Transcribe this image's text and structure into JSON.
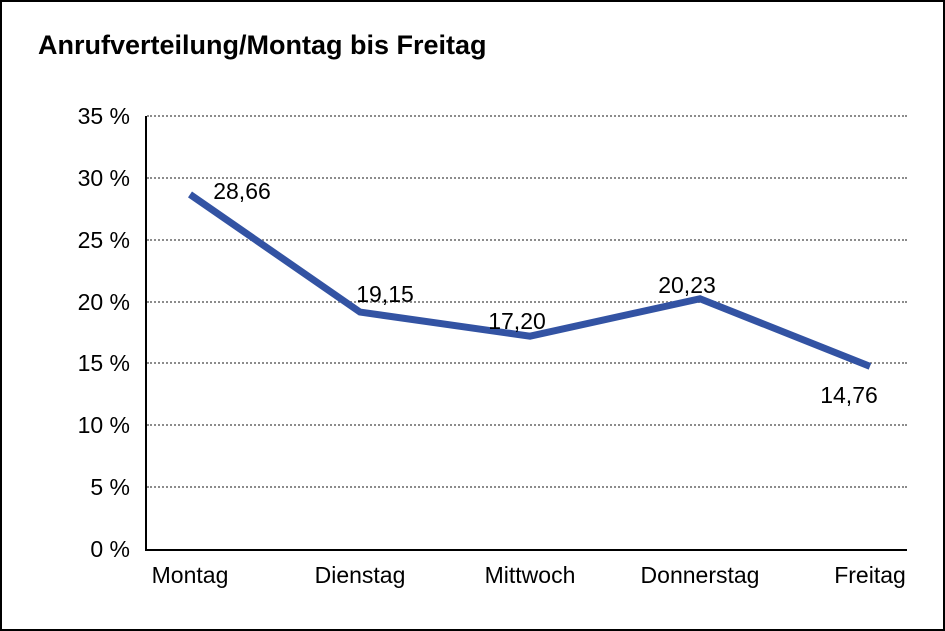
{
  "title": "Anrufverteilung/Montag bis Freitag",
  "colors": {
    "line": "#3353A3",
    "grid": "#8c8c8c",
    "axis": "#000000",
    "background": "#ffffff",
    "frame_border": "#000000",
    "text": "#000000"
  },
  "chart_data": {
    "type": "line",
    "title": "Anrufverteilung/Montag bis Freitag",
    "categories": [
      "Montag",
      "Dienstag",
      "Mittwoch",
      "Donnerstag",
      "Freitag"
    ],
    "values": [
      28.66,
      19.15,
      17.2,
      20.23,
      14.76
    ],
    "value_labels": [
      "28,66",
      "19,15",
      "17,20",
      "20,23",
      "14,76"
    ],
    "xlabel": "",
    "ylabel": "",
    "ylim": [
      0,
      35
    ],
    "ytick_step": 5,
    "ytick_labels": [
      "0 %",
      "5 %",
      "10 %",
      "15 %",
      "20 %",
      "25 %",
      "30 %",
      "35 %"
    ],
    "grid": "horizontal-dotted",
    "legend": "none"
  }
}
